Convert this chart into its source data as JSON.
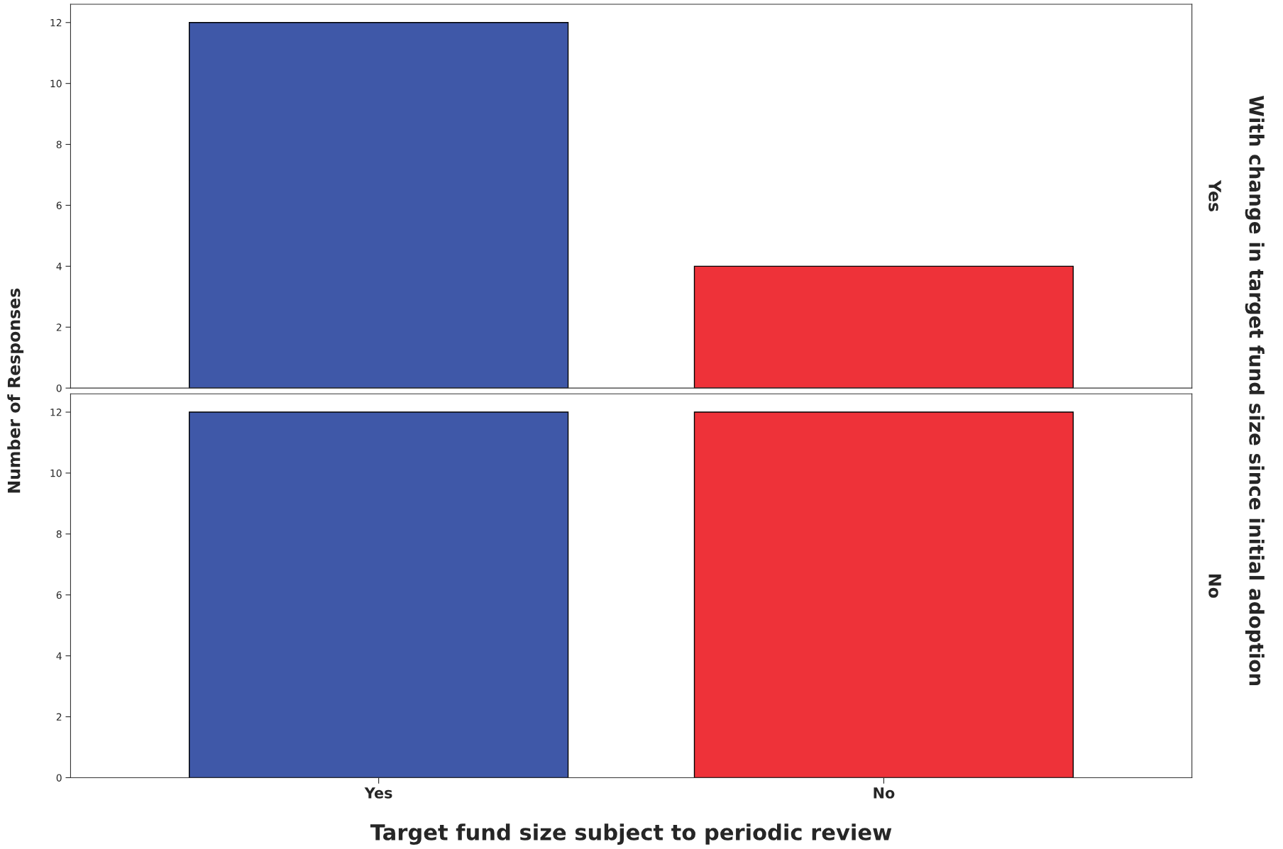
{
  "chart_data": [
    {
      "type": "bar",
      "categories": [
        null,
        null
      ],
      "values": [
        12,
        4
      ],
      "colors": [
        "#3f58a8",
        "#ee3239"
      ],
      "ylim": [
        0,
        12.6
      ],
      "yticks": [
        0,
        2,
        4,
        6,
        8,
        10,
        12
      ],
      "tick_labels": "y",
      "ylabel": "Number of Responses",
      "y2label": "Yes",
      "annotations": [
        "With change in target fund size since initial adoption"
      ],
      "grid": false,
      "legend": false
    },
    {
      "type": "bar",
      "categories": [
        "Yes",
        "No"
      ],
      "values": [
        12,
        12
      ],
      "colors": [
        "#3f58a8",
        "#ee3239"
      ],
      "ylim": [
        0,
        12.6
      ],
      "yticks": [
        0,
        2,
        4,
        6,
        8,
        10,
        12
      ],
      "xlabel": "Target fund size subject to periodic review",
      "y2label": "No",
      "grid": false,
      "legend": false
    }
  ]
}
